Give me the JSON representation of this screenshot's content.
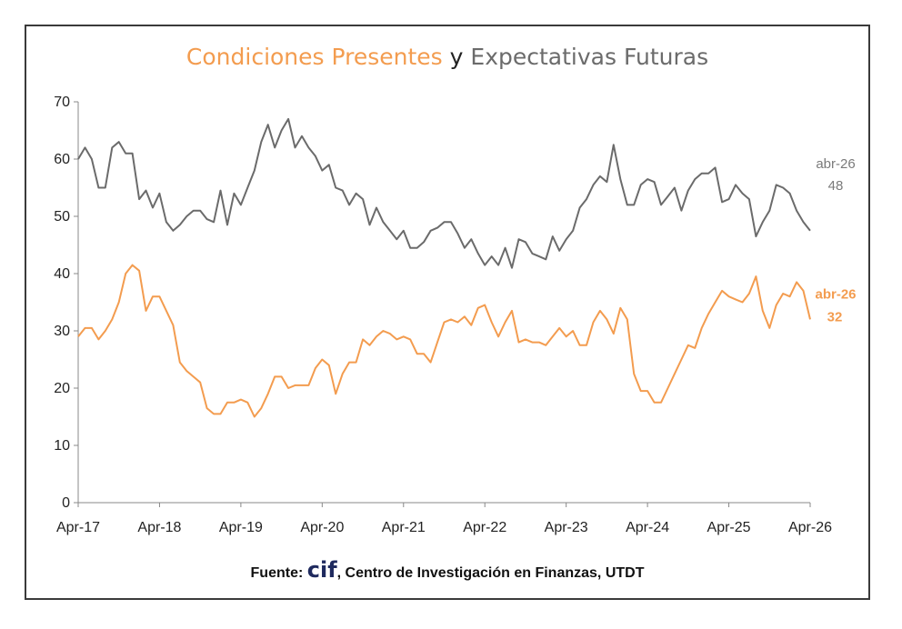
{
  "chart_data": {
    "type": "line",
    "title_parts": [
      "Condiciones Presentes",
      " y ",
      "Expectativas Futuras"
    ],
    "x_tick_labels": [
      "Apr-17",
      "Apr-18",
      "Apr-19",
      "Apr-20",
      "Apr-21",
      "Apr-22",
      "Apr-23",
      "Apr-24",
      "Apr-25",
      "Apr-26"
    ],
    "y_ticks": [
      0,
      10,
      20,
      30,
      40,
      50,
      60,
      70
    ],
    "ylim": [
      0,
      70
    ],
    "x_range": [
      "2017-04",
      "2026-04"
    ],
    "grid": false,
    "colors": {
      "presentes": "#f39c4f",
      "futuras": "#6b6b6b",
      "title_y": "#222222"
    },
    "series": [
      {
        "key": "futuras",
        "values": [
          [
            "2017-04",
            60
          ],
          [
            "2017-05",
            62
          ],
          [
            "2017-06",
            60
          ],
          [
            "2017-07",
            55
          ],
          [
            "2017-08",
            55
          ],
          [
            "2017-09",
            62
          ],
          [
            "2017-10",
            63
          ],
          [
            "2017-11",
            61
          ],
          [
            "2017-12",
            61
          ],
          [
            "2018-01",
            53
          ],
          [
            "2018-02",
            54.5
          ],
          [
            "2018-03",
            51.5
          ],
          [
            "2018-04",
            54
          ],
          [
            "2018-05",
            49
          ],
          [
            "2018-06",
            47.5
          ],
          [
            "2018-07",
            48.5
          ],
          [
            "2018-08",
            50
          ],
          [
            "2018-09",
            51
          ],
          [
            "2018-10",
            51
          ],
          [
            "2018-11",
            49.5
          ],
          [
            "2018-12",
            49
          ],
          [
            "2019-01",
            54.5
          ],
          [
            "2019-02",
            48.5
          ],
          [
            "2019-03",
            54
          ],
          [
            "2019-04",
            52
          ],
          [
            "2019-05",
            55
          ],
          [
            "2019-06",
            58
          ],
          [
            "2019-07",
            63
          ],
          [
            "2019-08",
            66
          ],
          [
            "2019-09",
            62
          ],
          [
            "2019-10",
            65
          ],
          [
            "2019-11",
            67
          ],
          [
            "2019-12",
            62
          ],
          [
            "2020-01",
            64
          ],
          [
            "2020-02",
            62
          ],
          [
            "2020-03",
            60.5
          ],
          [
            "2020-04",
            58
          ],
          [
            "2020-05",
            59
          ],
          [
            "2020-06",
            55
          ],
          [
            "2020-07",
            54.5
          ],
          [
            "2020-08",
            52
          ],
          [
            "2020-09",
            54
          ],
          [
            "2020-10",
            53
          ],
          [
            "2020-11",
            48.5
          ],
          [
            "2020-12",
            51.5
          ],
          [
            "2021-01",
            49
          ],
          [
            "2021-02",
            47.5
          ],
          [
            "2021-03",
            46
          ],
          [
            "2021-04",
            47.5
          ],
          [
            "2021-05",
            44.5
          ],
          [
            "2021-06",
            44.5
          ],
          [
            "2021-07",
            45.5
          ],
          [
            "2021-08",
            47.5
          ],
          [
            "2021-09",
            48
          ],
          [
            "2021-10",
            49
          ],
          [
            "2021-11",
            49
          ],
          [
            "2021-12",
            47
          ],
          [
            "2022-01",
            44.5
          ],
          [
            "2022-02",
            46
          ],
          [
            "2022-03",
            43.5
          ],
          [
            "2022-04",
            41.5
          ],
          [
            "2022-05",
            43
          ],
          [
            "2022-06",
            41.5
          ],
          [
            "2022-07",
            44.5
          ],
          [
            "2022-08",
            41
          ],
          [
            "2022-09",
            46
          ],
          [
            "2022-10",
            45.5
          ],
          [
            "2022-11",
            43.5
          ],
          [
            "2022-12",
            43
          ],
          [
            "2023-01",
            42.5
          ],
          [
            "2023-02",
            46.5
          ],
          [
            "2023-03",
            44
          ],
          [
            "2023-04",
            46
          ],
          [
            "2023-05",
            47.5
          ],
          [
            "2023-06",
            51.5
          ],
          [
            "2023-07",
            53
          ],
          [
            "2023-08",
            55.5
          ],
          [
            "2023-09",
            57
          ],
          [
            "2023-10",
            56
          ],
          [
            "2023-11",
            62.5
          ],
          [
            "2023-12",
            56.5
          ],
          [
            "2024-01",
            52
          ],
          [
            "2024-02",
            52
          ],
          [
            "2024-03",
            55.5
          ],
          [
            "2024-04",
            56.5
          ],
          [
            "2024-05",
            56
          ],
          [
            "2024-06",
            52
          ],
          [
            "2024-07",
            53.5
          ],
          [
            "2024-08",
            55
          ],
          [
            "2024-09",
            51
          ],
          [
            "2024-10",
            54.5
          ],
          [
            "2024-11",
            56.5
          ],
          [
            "2024-12",
            57.5
          ],
          [
            "2025-01",
            57.5
          ],
          [
            "2025-02",
            58.5
          ],
          [
            "2025-03",
            52.5
          ],
          [
            "2025-04",
            53
          ],
          [
            "2025-05",
            55.5
          ],
          [
            "2025-06",
            54
          ],
          [
            "2025-07",
            53
          ],
          [
            "2025-08",
            46.5
          ],
          [
            "2025-09",
            49
          ],
          [
            "2025-10",
            51
          ],
          [
            "2025-11",
            55.5
          ],
          [
            "2025-12",
            55
          ],
          [
            "2026-01",
            54
          ],
          [
            "2026-02",
            51
          ],
          [
            "2026-03",
            49
          ],
          [
            "2026-04",
            47.5
          ]
        ]
      },
      {
        "key": "presentes",
        "values": [
          [
            "2017-04",
            29
          ],
          [
            "2017-05",
            30.5
          ],
          [
            "2017-06",
            30.5
          ],
          [
            "2017-07",
            28.5
          ],
          [
            "2017-08",
            30
          ],
          [
            "2017-09",
            32
          ],
          [
            "2017-10",
            35
          ],
          [
            "2017-11",
            40
          ],
          [
            "2017-12",
            41.5
          ],
          [
            "2018-01",
            40.5
          ],
          [
            "2018-02",
            33.5
          ],
          [
            "2018-03",
            36
          ],
          [
            "2018-04",
            36
          ],
          [
            "2018-05",
            33.5
          ],
          [
            "2018-06",
            31
          ],
          [
            "2018-07",
            24.5
          ],
          [
            "2018-08",
            23
          ],
          [
            "2018-09",
            22
          ],
          [
            "2018-10",
            21
          ],
          [
            "2018-11",
            16.5
          ],
          [
            "2018-12",
            15.5
          ],
          [
            "2019-01",
            15.5
          ],
          [
            "2019-02",
            17.5
          ],
          [
            "2019-03",
            17.5
          ],
          [
            "2019-04",
            18
          ],
          [
            "2019-05",
            17.5
          ],
          [
            "2019-06",
            15
          ],
          [
            "2019-07",
            16.5
          ],
          [
            "2019-08",
            19
          ],
          [
            "2019-09",
            22
          ],
          [
            "2019-10",
            22
          ],
          [
            "2019-11",
            20
          ],
          [
            "2019-12",
            20.5
          ],
          [
            "2020-01",
            20.5
          ],
          [
            "2020-02",
            20.5
          ],
          [
            "2020-03",
            23.5
          ],
          [
            "2020-04",
            25
          ],
          [
            "2020-05",
            24
          ],
          [
            "2020-06",
            19
          ],
          [
            "2020-07",
            22.5
          ],
          [
            "2020-08",
            24.5
          ],
          [
            "2020-09",
            24.5
          ],
          [
            "2020-10",
            28.5
          ],
          [
            "2020-11",
            27.5
          ],
          [
            "2020-12",
            29
          ],
          [
            "2021-01",
            30
          ],
          [
            "2021-02",
            29.5
          ],
          [
            "2021-03",
            28.5
          ],
          [
            "2021-04",
            29
          ],
          [
            "2021-05",
            28.5
          ],
          [
            "2021-06",
            26
          ],
          [
            "2021-07",
            26
          ],
          [
            "2021-08",
            24.5
          ],
          [
            "2021-09",
            28
          ],
          [
            "2021-10",
            31.5
          ],
          [
            "2021-11",
            32
          ],
          [
            "2021-12",
            31.5
          ],
          [
            "2022-01",
            32.5
          ],
          [
            "2022-02",
            31
          ],
          [
            "2022-03",
            34
          ],
          [
            "2022-04",
            34.5
          ],
          [
            "2022-05",
            31.5
          ],
          [
            "2022-06",
            29
          ],
          [
            "2022-07",
            31.5
          ],
          [
            "2022-08",
            33.5
          ],
          [
            "2022-09",
            28
          ],
          [
            "2022-10",
            28.5
          ],
          [
            "2022-11",
            28
          ],
          [
            "2022-12",
            28
          ],
          [
            "2023-01",
            27.5
          ],
          [
            "2023-02",
            29
          ],
          [
            "2023-03",
            30.5
          ],
          [
            "2023-04",
            29
          ],
          [
            "2023-05",
            30
          ],
          [
            "2023-06",
            27.5
          ],
          [
            "2023-07",
            27.5
          ],
          [
            "2023-08",
            31.5
          ],
          [
            "2023-09",
            33.5
          ],
          [
            "2023-10",
            32
          ],
          [
            "2023-11",
            29.5
          ],
          [
            "2023-12",
            34
          ],
          [
            "2024-01",
            32
          ],
          [
            "2024-02",
            22.5
          ],
          [
            "2024-03",
            19.5
          ],
          [
            "2024-04",
            19.5
          ],
          [
            "2024-05",
            17.5
          ],
          [
            "2024-06",
            17.5
          ],
          [
            "2024-07",
            20
          ],
          [
            "2024-08",
            22.5
          ],
          [
            "2024-09",
            25
          ],
          [
            "2024-10",
            27.5
          ],
          [
            "2024-11",
            27
          ],
          [
            "2024-12",
            30.5
          ],
          [
            "2025-01",
            33
          ],
          [
            "2025-02",
            35
          ],
          [
            "2025-03",
            37
          ],
          [
            "2025-04",
            36
          ],
          [
            "2025-05",
            35.5
          ],
          [
            "2025-06",
            35
          ],
          [
            "2025-07",
            36.5
          ],
          [
            "2025-08",
            39.5
          ],
          [
            "2025-09",
            33.5
          ],
          [
            "2025-10",
            30.5
          ],
          [
            "2025-11",
            34.5
          ],
          [
            "2025-12",
            36.5
          ],
          [
            "2026-01",
            36
          ],
          [
            "2026-02",
            38.5
          ],
          [
            "2026-03",
            37
          ],
          [
            "2026-04",
            32
          ]
        ]
      }
    ],
    "end_labels": {
      "futuras": {
        "date": "abr-26",
        "value": "48"
      },
      "presentes": {
        "date": "abr-26",
        "value": "32"
      }
    },
    "source": {
      "prefix": "Fuente: ",
      "logo": "cif",
      "suffix": ", Centro de Investigación en Finanzas, UTDT"
    }
  }
}
